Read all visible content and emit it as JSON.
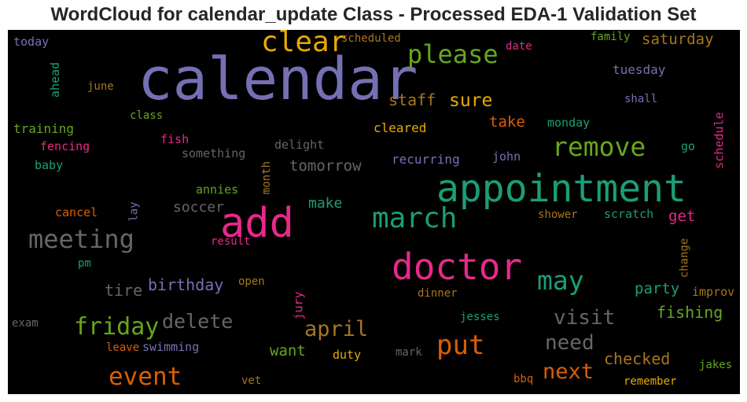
{
  "title": "WordCloud for calendar_update Class - Processed EDA-1 Validation Set",
  "colors": {
    "purple": "#7570b3",
    "teal": "#1b9e77",
    "pink": "#e7298a",
    "orange": "#d95f02",
    "green": "#66a61e",
    "gold": "#e6ab02",
    "tan": "#a6761d",
    "gray": "#666666",
    "background": "#000000"
  },
  "words": [
    {
      "text": "calendar",
      "color": "#7570b3"
    },
    {
      "text": "appointment",
      "color": "#1b9e77"
    },
    {
      "text": "add",
      "color": "#e7298a"
    },
    {
      "text": "doctor",
      "color": "#e7298a"
    },
    {
      "text": "clear",
      "color": "#e6ab02"
    },
    {
      "text": "please",
      "color": "#66a61e"
    },
    {
      "text": "march",
      "color": "#1b9e77"
    },
    {
      "text": "remove",
      "color": "#66a61e"
    },
    {
      "text": "meeting",
      "color": "#666666"
    },
    {
      "text": "put",
      "color": "#d95f02"
    },
    {
      "text": "friday",
      "color": "#66a61e"
    },
    {
      "text": "may",
      "color": "#1b9e77"
    },
    {
      "text": "event",
      "color": "#d95f02"
    },
    {
      "text": "april",
      "color": "#a6761d"
    },
    {
      "text": "delete",
      "color": "#666666"
    },
    {
      "text": "visit",
      "color": "#666666"
    },
    {
      "text": "need",
      "color": "#666666"
    },
    {
      "text": "next",
      "color": "#d95f02"
    },
    {
      "text": "sure",
      "color": "#e6ab02"
    },
    {
      "text": "staff",
      "color": "#a6761d"
    },
    {
      "text": "tomorrow",
      "color": "#666666"
    },
    {
      "text": "birthday",
      "color": "#7570b3"
    },
    {
      "text": "fishing",
      "color": "#66a61e"
    },
    {
      "text": "checked",
      "color": "#a6761d"
    },
    {
      "text": "saturday",
      "color": "#a6761d"
    },
    {
      "text": "take",
      "color": "#d95f02"
    },
    {
      "text": "party",
      "color": "#1b9e77"
    },
    {
      "text": "tire",
      "color": "#666666"
    },
    {
      "text": "want",
      "color": "#66a61e"
    },
    {
      "text": "make",
      "color": "#1b9e77"
    },
    {
      "text": "soccer",
      "color": "#666666"
    },
    {
      "text": "get",
      "color": "#e7298a"
    },
    {
      "text": "tuesday",
      "color": "#7570b3"
    },
    {
      "text": "recurring",
      "color": "#7570b3"
    },
    {
      "text": "cleared",
      "color": "#e6ab02"
    },
    {
      "text": "monday",
      "color": "#1b9e77"
    },
    {
      "text": "delight",
      "color": "#666666"
    },
    {
      "text": "something",
      "color": "#666666"
    },
    {
      "text": "training",
      "color": "#66a61e"
    },
    {
      "text": "fencing",
      "color": "#e7298a"
    },
    {
      "text": "baby",
      "color": "#1b9e77"
    },
    {
      "text": "cancel",
      "color": "#d95f02"
    },
    {
      "text": "today",
      "color": "#7570b3"
    },
    {
      "text": "scheduled",
      "color": "#a6761d"
    },
    {
      "text": "date",
      "color": "#e7298a"
    },
    {
      "text": "family",
      "color": "#66a61e"
    },
    {
      "text": "june",
      "color": "#a6761d"
    },
    {
      "text": "class",
      "color": "#66a61e"
    },
    {
      "text": "fish",
      "color": "#e7298a"
    },
    {
      "text": "shall",
      "color": "#7570b3"
    },
    {
      "text": "go",
      "color": "#1b9e77"
    },
    {
      "text": "john",
      "color": "#7570b3"
    },
    {
      "text": "annies",
      "color": "#66a61e"
    },
    {
      "text": "shower",
      "color": "#a6761d"
    },
    {
      "text": "scratch",
      "color": "#1b9e77"
    },
    {
      "text": "result",
      "color": "#e7298a"
    },
    {
      "text": "pm",
      "color": "#1b9e77"
    },
    {
      "text": "open",
      "color": "#a6761d"
    },
    {
      "text": "dinner",
      "color": "#a6761d"
    },
    {
      "text": "improv",
      "color": "#a6761d"
    },
    {
      "text": "exam",
      "color": "#666666"
    },
    {
      "text": "leave",
      "color": "#d95f02"
    },
    {
      "text": "swimming",
      "color": "#7570b3"
    },
    {
      "text": "duty",
      "color": "#e6ab02"
    },
    {
      "text": "jesses",
      "color": "#1b9e77"
    },
    {
      "text": "mark",
      "color": "#666666"
    },
    {
      "text": "vet",
      "color": "#a6761d"
    },
    {
      "text": "bbq",
      "color": "#d95f02"
    },
    {
      "text": "remember",
      "color": "#e6ab02"
    },
    {
      "text": "jakes",
      "color": "#66a61e"
    },
    {
      "text": "ahead",
      "color": "#1b9e77"
    },
    {
      "text": "month",
      "color": "#a6761d"
    },
    {
      "text": "lay",
      "color": "#7570b3"
    },
    {
      "text": "jury",
      "color": "#e7298a"
    },
    {
      "text": "change",
      "color": "#a6761d"
    },
    {
      "text": "schedule",
      "color": "#e7298a"
    }
  ]
}
